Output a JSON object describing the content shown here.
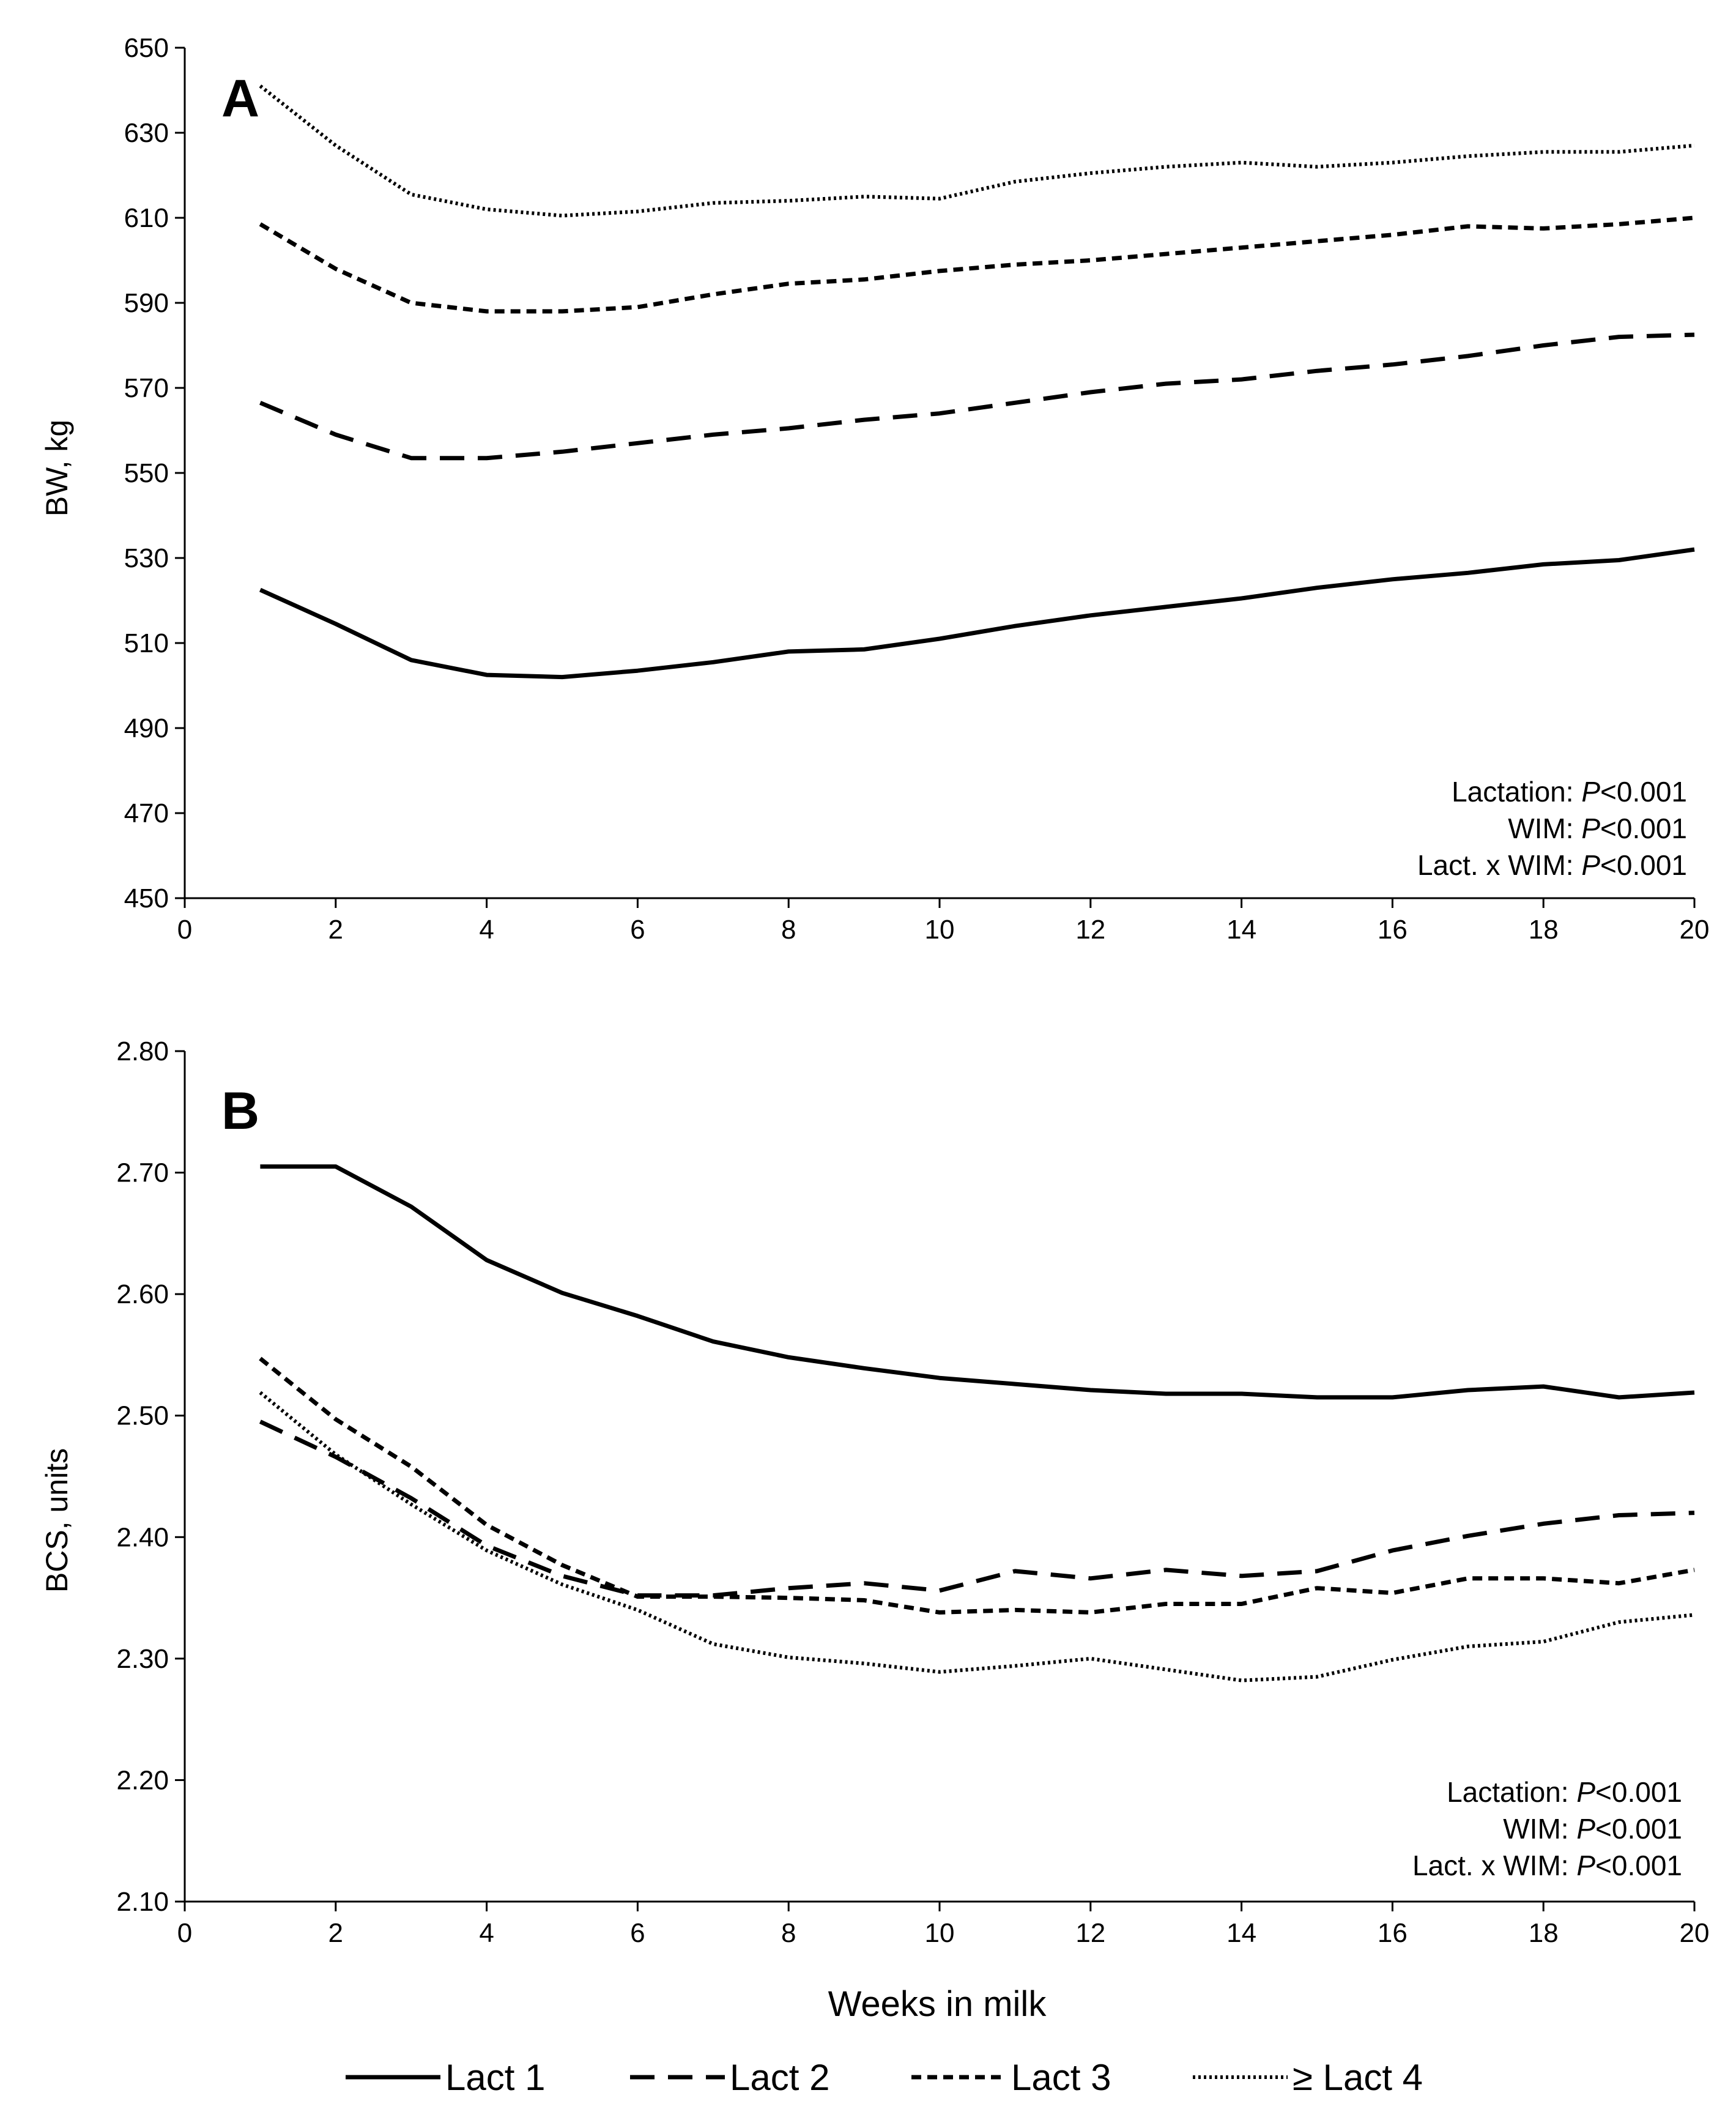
{
  "chart_data": [
    {
      "type": "line",
      "panel": "A",
      "xlabel": "",
      "ylabel": "BW, kg",
      "xlim": [
        0,
        20
      ],
      "ylim": [
        450,
        650
      ],
      "xticks": [
        0,
        2,
        4,
        6,
        8,
        10,
        12,
        14,
        16,
        18,
        20
      ],
      "yticks": [
        450,
        470,
        490,
        510,
        530,
        550,
        570,
        590,
        610,
        630,
        650
      ],
      "x": [
        1,
        2,
        3,
        4,
        5,
        6,
        7,
        8,
        9,
        10,
        11,
        12,
        13,
        14,
        15,
        16,
        17,
        18,
        19,
        20
      ],
      "series": [
        {
          "name": "Lact 1",
          "values": [
            522.5,
            514.5,
            506,
            502.5,
            502,
            503.5,
            505.5,
            508,
            508.5,
            511,
            514,
            516.5,
            518.5,
            520.5,
            523,
            525,
            526.5,
            528.5,
            529.5,
            532
          ]
        },
        {
          "name": "Lact 2",
          "values": [
            566.5,
            559,
            553.5,
            553.5,
            555,
            557,
            559,
            560.5,
            562.5,
            564,
            566.5,
            569,
            571,
            572,
            574,
            575.5,
            577.5,
            580,
            582,
            582.5
          ]
        },
        {
          "name": "Lact 3",
          "values": [
            608.5,
            598,
            590,
            588,
            588,
            589,
            592,
            594.5,
            595.5,
            597.5,
            599,
            600,
            601.5,
            603,
            604.5,
            606,
            608,
            607.5,
            608.5,
            610
          ]
        },
        {
          "name": "≥ Lact 4",
          "values": [
            641,
            627,
            615.5,
            612,
            610.5,
            611.5,
            613.5,
            614,
            615,
            614.5,
            618.5,
            620.5,
            622,
            623,
            622,
            623,
            624.5,
            625.5,
            625.5,
            627
          ]
        }
      ],
      "annotations": [
        {
          "label": "Lactation: ",
          "p": "P",
          "value": "<0.001"
        },
        {
          "label": "WIM: ",
          "p": "P",
          "value": "<0.001"
        },
        {
          "label": "Lact. x WIM: ",
          "p": "P",
          "value": "<0.001"
        }
      ]
    },
    {
      "type": "line",
      "panel": "B",
      "xlabel": "Weeks in milk",
      "ylabel": "BCS, units",
      "xlim": [
        0,
        20
      ],
      "ylim": [
        2.1,
        2.8
      ],
      "xticks": [
        0,
        2,
        4,
        6,
        8,
        10,
        12,
        14,
        16,
        18,
        20
      ],
      "yticks": [
        "2.10",
        "2.20",
        "2.30",
        "2.40",
        "2.50",
        "2.60",
        "2.70",
        "2.80"
      ],
      "x": [
        1,
        2,
        3,
        4,
        5,
        6,
        7,
        8,
        9,
        10,
        11,
        12,
        13,
        14,
        15,
        16,
        17,
        18,
        19,
        20
      ],
      "series": [
        {
          "name": "Lact 1",
          "values": [
            2.705,
            2.705,
            2.672,
            2.628,
            2.601,
            2.582,
            2.561,
            2.548,
            2.539,
            2.531,
            2.526,
            2.521,
            2.518,
            2.518,
            2.515,
            2.515,
            2.521,
            2.524,
            2.515,
            2.519
          ]
        },
        {
          "name": "Lact 2",
          "values": [
            2.495,
            2.466,
            2.432,
            2.393,
            2.368,
            2.352,
            2.352,
            2.358,
            2.362,
            2.356,
            2.372,
            2.366,
            2.373,
            2.368,
            2.372,
            2.389,
            2.401,
            2.411,
            2.418,
            2.42
          ]
        },
        {
          "name": "Lact 3",
          "values": [
            2.547,
            2.497,
            2.458,
            2.41,
            2.377,
            2.351,
            2.351,
            2.35,
            2.348,
            2.338,
            2.34,
            2.338,
            2.345,
            2.345,
            2.358,
            2.354,
            2.366,
            2.366,
            2.362,
            2.373
          ]
        },
        {
          "name": "≥ Lact 4",
          "values": [
            2.519,
            2.468,
            2.427,
            2.389,
            2.361,
            2.34,
            2.312,
            2.301,
            2.296,
            2.289,
            2.294,
            2.3,
            2.291,
            2.282,
            2.285,
            2.299,
            2.31,
            2.314,
            2.33,
            2.336
          ]
        }
      ],
      "annotations": [
        {
          "label": "Lactation: ",
          "p": "P",
          "value": "<0.001"
        },
        {
          "label": "WIM: ",
          "p": "P",
          "value": "<0.001"
        },
        {
          "label": "Lact. x WIM: ",
          "p": "P",
          "value": "<0.001"
        }
      ]
    }
  ],
  "legend": [
    "Lact 1",
    "Lact 2",
    "Lact 3",
    "≥ Lact 4"
  ]
}
